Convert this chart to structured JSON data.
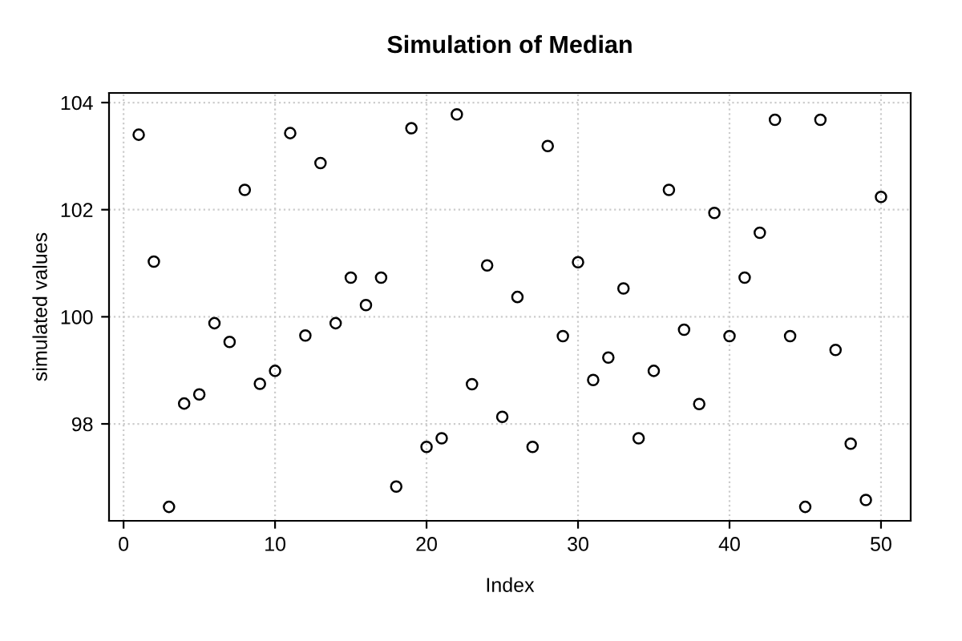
{
  "chart_data": {
    "type": "scatter",
    "title": "Simulation of Median",
    "xlabel": "Index",
    "ylabel": "simulated values",
    "x": [
      1,
      2,
      3,
      4,
      5,
      6,
      7,
      8,
      9,
      10,
      11,
      12,
      13,
      14,
      15,
      16,
      17,
      18,
      19,
      20,
      21,
      22,
      23,
      24,
      25,
      26,
      27,
      28,
      29,
      30,
      31,
      32,
      33,
      34,
      35,
      36,
      37,
      38,
      39,
      40,
      41,
      42,
      43,
      44,
      45,
      46,
      47,
      48,
      49,
      50
    ],
    "series": [
      {
        "color": "#000000",
        "values": [
          103.4,
          101.03,
          96.45,
          98.38,
          98.55,
          99.88,
          99.53,
          102.37,
          98.75,
          98.99,
          103.43,
          99.65,
          102.87,
          99.88,
          100.73,
          100.22,
          100.73,
          96.83,
          103.52,
          97.57,
          97.73,
          103.78,
          98.74,
          100.96,
          98.13,
          100.37,
          97.57,
          103.19,
          99.64,
          101.02,
          98.82,
          99.24,
          100.53,
          97.73,
          98.99,
          102.37,
          99.76,
          98.37,
          101.94,
          99.64,
          100.73,
          101.57,
          103.68,
          99.64,
          96.45,
          103.68,
          99.38,
          97.63,
          96.58,
          102.24
        ]
      }
    ],
    "xlim": [
      -0.96,
      51.96
    ],
    "ylim": [
      96.19,
      104.18
    ],
    "xticks": [
      0,
      10,
      20,
      30,
      40,
      50
    ],
    "yticks": [
      98,
      100,
      102,
      104
    ],
    "grid": true,
    "marker": "circle",
    "legend": false
  }
}
